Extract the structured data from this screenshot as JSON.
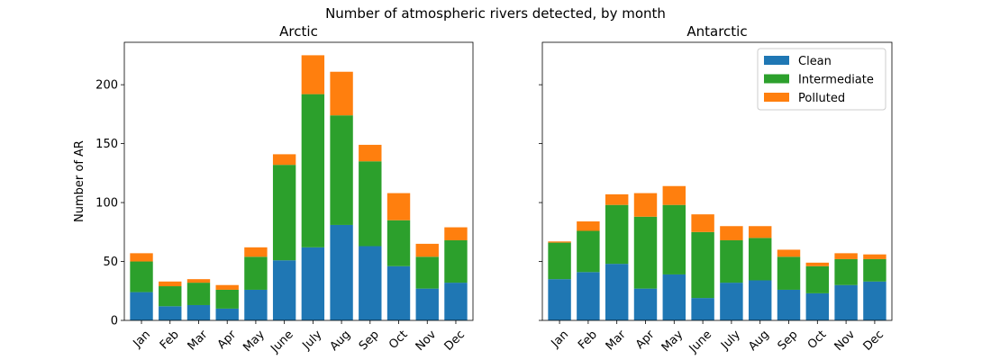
{
  "figure": {
    "suptitle": "Number of atmospheric rivers detected, by month"
  },
  "legend": {
    "placement": "upper right of right panel"
  },
  "colors": {
    "Clean": "#1f77b4",
    "Intermediate": "#2ca02c",
    "Polluted": "#ff7f0e"
  },
  "chart_data": [
    {
      "type": "bar",
      "stacked": true,
      "title": "Arctic",
      "ylabel": "Number of AR",
      "xlabel": "",
      "ylim": [
        0,
        236
      ],
      "yticks": [
        0,
        50,
        100,
        150,
        200
      ],
      "categories": [
        "Jan",
        "Feb",
        "Mar",
        "Apr",
        "May",
        "June",
        "July",
        "Aug",
        "Sep",
        "Oct",
        "Nov",
        "Dec"
      ],
      "series": [
        {
          "name": "Clean",
          "values": [
            24,
            12,
            13,
            10,
            26,
            51,
            62,
            81,
            63,
            46,
            27,
            32
          ]
        },
        {
          "name": "Intermediate",
          "values": [
            26,
            17,
            19,
            16,
            28,
            81,
            130,
            93,
            72,
            39,
            27,
            36
          ]
        },
        {
          "name": "Polluted",
          "values": [
            7,
            4,
            3,
            4,
            8,
            9,
            33,
            37,
            14,
            23,
            11,
            11
          ]
        }
      ]
    },
    {
      "type": "bar",
      "stacked": true,
      "title": "Antarctic",
      "ylabel": "",
      "xlabel": "",
      "ylim": [
        0,
        236
      ],
      "yticks": [
        0,
        50,
        100,
        150,
        200
      ],
      "legend": [
        "Clean",
        "Intermediate",
        "Polluted"
      ],
      "categories": [
        "Jan",
        "Feb",
        "Mar",
        "Apr",
        "May",
        "June",
        "July",
        "Aug",
        "Sep",
        "Oct",
        "Nov",
        "Dec"
      ],
      "series": [
        {
          "name": "Clean",
          "values": [
            35,
            41,
            48,
            27,
            39,
            19,
            32,
            34,
            26,
            23,
            30,
            33
          ]
        },
        {
          "name": "Intermediate",
          "values": [
            31,
            35,
            50,
            61,
            59,
            56,
            36,
            36,
            28,
            23,
            22,
            19
          ]
        },
        {
          "name": "Polluted",
          "values": [
            1,
            8,
            9,
            20,
            16,
            15,
            12,
            10,
            6,
            3,
            5,
            4
          ]
        }
      ]
    }
  ]
}
